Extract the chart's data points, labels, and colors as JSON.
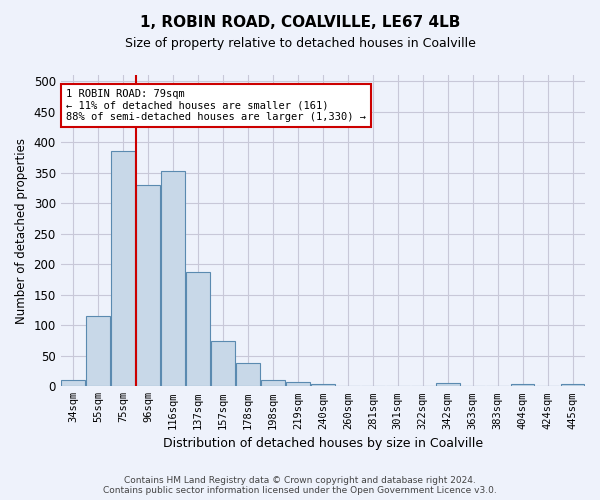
{
  "title": "1, ROBIN ROAD, COALVILLE, LE67 4LB",
  "subtitle": "Size of property relative to detached houses in Coalville",
  "xlabel": "Distribution of detached houses by size in Coalville",
  "ylabel": "Number of detached properties",
  "categories": [
    "34sqm",
    "55sqm",
    "75sqm",
    "96sqm",
    "116sqm",
    "137sqm",
    "157sqm",
    "178sqm",
    "198sqm",
    "219sqm",
    "240sqm",
    "260sqm",
    "281sqm",
    "301sqm",
    "322sqm",
    "342sqm",
    "363sqm",
    "383sqm",
    "404sqm",
    "424sqm",
    "445sqm"
  ],
  "values": [
    11,
    115,
    385,
    330,
    352,
    188,
    75,
    38,
    11,
    7,
    4,
    0,
    0,
    0,
    0,
    5,
    0,
    0,
    4,
    0,
    4
  ],
  "bar_color": "#c8d8e8",
  "bar_edge_color": "#5a8ab0",
  "property_line_idx": 2,
  "annotation_text": "1 ROBIN ROAD: 79sqm\n← 11% of detached houses are smaller (161)\n88% of semi-detached houses are larger (1,330) →",
  "annotation_box_color": "#ffffff",
  "annotation_box_edge": "#cc0000",
  "grid_color": "#c8c8d8",
  "background_color": "#eef2fb",
  "footer_text": "Contains HM Land Registry data © Crown copyright and database right 2024.\nContains public sector information licensed under the Open Government Licence v3.0.",
  "ylim": [
    0,
    510
  ],
  "yticks": [
    0,
    50,
    100,
    150,
    200,
    250,
    300,
    350,
    400,
    450,
    500
  ]
}
